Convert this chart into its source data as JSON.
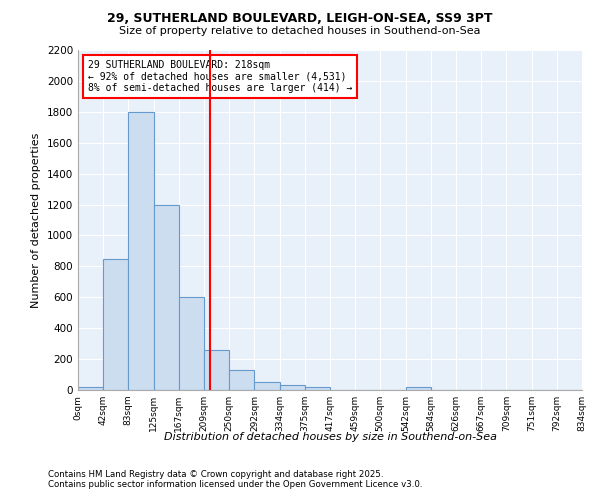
{
  "title1": "29, SUTHERLAND BOULEVARD, LEIGH-ON-SEA, SS9 3PT",
  "title2": "Size of property relative to detached houses in Southend-on-Sea",
  "xlabel": "Distribution of detached houses by size in Southend-on-Sea",
  "ylabel": "Number of detached properties",
  "bin_edges": [
    0,
    42,
    83,
    125,
    167,
    209,
    250,
    292,
    334,
    375,
    417,
    459,
    500,
    542,
    584,
    626,
    667,
    709,
    751,
    792,
    834
  ],
  "bar_heights": [
    20,
    850,
    1800,
    1200,
    600,
    260,
    130,
    50,
    30,
    20,
    0,
    0,
    0,
    20,
    0,
    0,
    0,
    0,
    0,
    0
  ],
  "bar_color": "#ccddf0",
  "bar_edge_color": "#6699cc",
  "red_line_x": 218,
  "annotation_line1": "29 SUTHERLAND BOULEVARD: 218sqm",
  "annotation_line2": "← 92% of detached houses are smaller (4,531)",
  "annotation_line3": "8% of semi-detached houses are larger (414) →",
  "ylim": [
    0,
    2200
  ],
  "yticks": [
    0,
    200,
    400,
    600,
    800,
    1000,
    1200,
    1400,
    1600,
    1800,
    2000,
    2200
  ],
  "plot_bg_color": "#e8f0fa",
  "fig_bg_color": "#ffffff",
  "grid_color": "#ffffff",
  "footer_line1": "Contains HM Land Registry data © Crown copyright and database right 2025.",
  "footer_line2": "Contains public sector information licensed under the Open Government Licence v3.0."
}
